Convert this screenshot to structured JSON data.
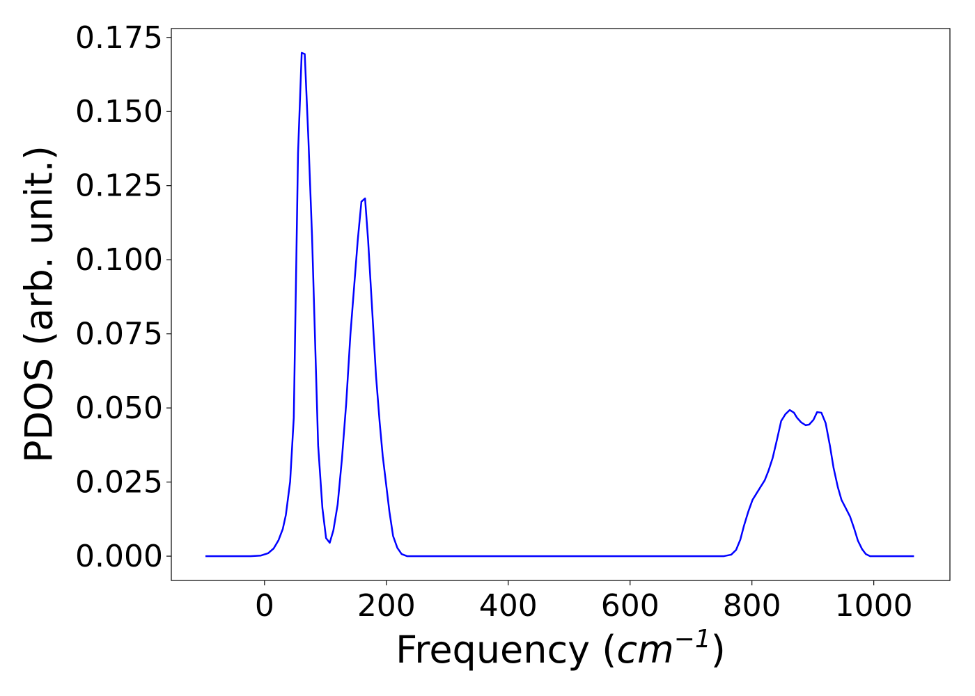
{
  "chart_data": {
    "type": "line",
    "xlabel_parts": [
      "Frequency (",
      "cm",
      "−1",
      ")"
    ],
    "ylabel": "PDOS (arb. unit.)",
    "x": [
      -97,
      -23,
      -6,
      6,
      15,
      23,
      30,
      35,
      42,
      48,
      55,
      61,
      66,
      72,
      78,
      88,
      95,
      101,
      107,
      113,
      120,
      127,
      134,
      141,
      153,
      159,
      165,
      170,
      183,
      189,
      194,
      205,
      211,
      218,
      225,
      234,
      754,
      766,
      774,
      781,
      787,
      794,
      801,
      814,
      821,
      827,
      834,
      841,
      848,
      855,
      862,
      869,
      874,
      881,
      888,
      894,
      901,
      907,
      914,
      921,
      928,
      934,
      941,
      947,
      954,
      961,
      968,
      974,
      981,
      987,
      994,
      1066
    ],
    "series": [
      {
        "name": "PDOS",
        "color": "#0000ff",
        "values": [
          0,
          0,
          0.0002,
          0.001,
          0.0026,
          0.0054,
          0.0092,
          0.0139,
          0.0251,
          0.0467,
          0.136,
          0.1698,
          0.1694,
          0.1407,
          0.1078,
          0.0373,
          0.0162,
          0.0061,
          0.0045,
          0.0087,
          0.0174,
          0.0327,
          0.0514,
          0.0749,
          0.1066,
          0.1196,
          0.1207,
          0.1066,
          0.0608,
          0.0451,
          0.0338,
          0.015,
          0.0068,
          0.0028,
          0.0007,
          0,
          0,
          0.0005,
          0.0021,
          0.0056,
          0.0103,
          0.015,
          0.019,
          0.0233,
          0.0256,
          0.0287,
          0.0331,
          0.0392,
          0.0456,
          0.0479,
          0.0493,
          0.0484,
          0.0467,
          0.0451,
          0.0442,
          0.0444,
          0.046,
          0.0486,
          0.0484,
          0.0449,
          0.0373,
          0.0298,
          0.0233,
          0.019,
          0.0162,
          0.0134,
          0.0092,
          0.0052,
          0.0023,
          0.0007,
          0,
          0
        ]
      }
    ],
    "xlim": [
      -153,
      1125
    ],
    "ylim": [
      -0.0082,
      0.178
    ],
    "xticks": [
      0,
      200,
      400,
      600,
      800,
      1000
    ],
    "yticks": [
      {
        "value": 0,
        "label": "0.000"
      },
      {
        "value": 0.025,
        "label": "0.025"
      },
      {
        "value": 0.05,
        "label": "0.050"
      },
      {
        "value": 0.075,
        "label": "0.075"
      },
      {
        "value": 0.1,
        "label": "0.100"
      },
      {
        "value": 0.125,
        "label": "0.125"
      },
      {
        "value": 0.15,
        "label": "0.150"
      },
      {
        "value": 0.175,
        "label": "0.175"
      }
    ],
    "grid": false
  }
}
